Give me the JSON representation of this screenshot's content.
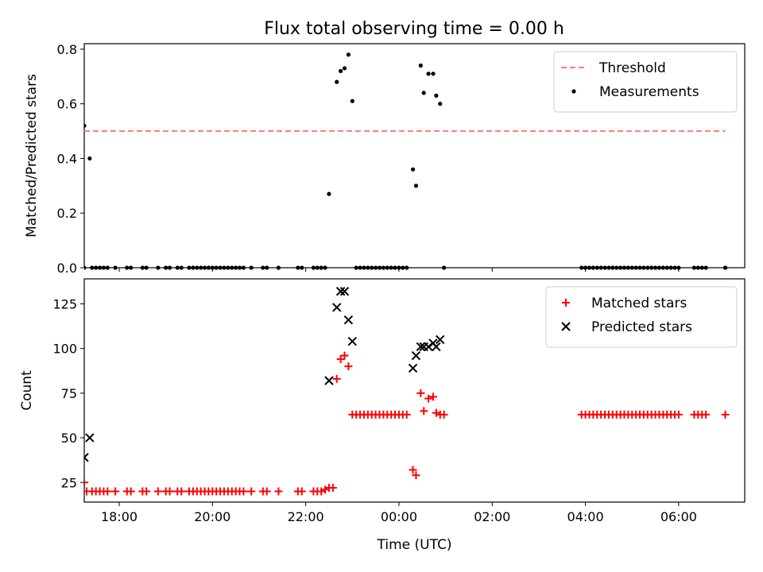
{
  "title": "Flux total observing time = 0.00 h",
  "chart_data": [
    {
      "type": "scatter",
      "ylabel": "Matched/Predicted stars",
      "xlabel": "",
      "xlim": [
        "17:15",
        "31:25"
      ],
      "ylim": [
        0,
        0.82
      ],
      "yticks": [
        "0.0",
        "0.2",
        "0.4",
        "0.6",
        "0.8"
      ],
      "ytick_values": [
        0,
        0.2,
        0.4,
        0.6,
        0.8
      ],
      "legend_position": "top-right",
      "threshold": {
        "name": "Threshold",
        "value": 0.5,
        "x_range": [
          "17:15",
          "31:00"
        ],
        "color": "#ff7f7f",
        "style": "dashed"
      },
      "series": [
        {
          "name": "Measurements",
          "marker": "dot",
          "color": "#000000",
          "points": [
            [
              "17:15",
              0.0
            ],
            [
              "17:15",
              0.52
            ],
            [
              "17:22",
              0.4
            ],
            [
              "17:25",
              0.0
            ],
            [
              "17:30",
              0.0
            ],
            [
              "17:35",
              0.0
            ],
            [
              "17:40",
              0.0
            ],
            [
              "17:45",
              0.0
            ],
            [
              "17:55",
              0.0
            ],
            [
              "18:10",
              0.0
            ],
            [
              "18:15",
              0.0
            ],
            [
              "18:30",
              0.0
            ],
            [
              "18:35",
              0.0
            ],
            [
              "18:50",
              0.0
            ],
            [
              "19:00",
              0.0
            ],
            [
              "19:05",
              0.0
            ],
            [
              "19:15",
              0.0
            ],
            [
              "19:20",
              0.0
            ],
            [
              "19:30",
              0.0
            ],
            [
              "19:35",
              0.0
            ],
            [
              "19:40",
              0.0
            ],
            [
              "19:45",
              0.0
            ],
            [
              "19:50",
              0.0
            ],
            [
              "19:55",
              0.0
            ],
            [
              "20:00",
              0.0
            ],
            [
              "20:05",
              0.0
            ],
            [
              "20:10",
              0.0
            ],
            [
              "20:15",
              0.0
            ],
            [
              "20:20",
              0.0
            ],
            [
              "20:25",
              0.0
            ],
            [
              "20:30",
              0.0
            ],
            [
              "20:35",
              0.0
            ],
            [
              "20:40",
              0.0
            ],
            [
              "20:50",
              0.0
            ],
            [
              "21:05",
              0.0
            ],
            [
              "21:10",
              0.0
            ],
            [
              "21:25",
              0.0
            ],
            [
              "21:50",
              0.0
            ],
            [
              "21:55",
              0.0
            ],
            [
              "22:10",
              0.0
            ],
            [
              "22:15",
              0.0
            ],
            [
              "22:20",
              0.0
            ],
            [
              "22:25",
              0.0
            ],
            [
              "22:30",
              0.27
            ],
            [
              "22:40",
              0.68
            ],
            [
              "22:45",
              0.72
            ],
            [
              "22:50",
              0.73
            ],
            [
              "22:55",
              0.78
            ],
            [
              "23:00",
              0.61
            ],
            [
              "23:05",
              0.0
            ],
            [
              "23:10",
              0.0
            ],
            [
              "23:15",
              0.0
            ],
            [
              "23:20",
              0.0
            ],
            [
              "23:25",
              0.0
            ],
            [
              "23:30",
              0.0
            ],
            [
              "23:35",
              0.0
            ],
            [
              "23:40",
              0.0
            ],
            [
              "23:45",
              0.0
            ],
            [
              "23:50",
              0.0
            ],
            [
              "23:55",
              0.0
            ],
            [
              "24:00",
              0.0
            ],
            [
              "24:05",
              0.0
            ],
            [
              "24:10",
              0.0
            ],
            [
              "24:18",
              0.36
            ],
            [
              "24:22",
              0.3
            ],
            [
              "24:28",
              0.74
            ],
            [
              "24:32",
              0.64
            ],
            [
              "24:38",
              0.71
            ],
            [
              "24:44",
              0.71
            ],
            [
              "24:48",
              0.63
            ],
            [
              "24:53",
              0.6
            ],
            [
              "24:58",
              0.0
            ],
            [
              "27:55",
              0.0
            ],
            [
              "28:00",
              0.0
            ],
            [
              "28:05",
              0.0
            ],
            [
              "28:10",
              0.0
            ],
            [
              "28:15",
              0.0
            ],
            [
              "28:20",
              0.0
            ],
            [
              "28:25",
              0.0
            ],
            [
              "28:30",
              0.0
            ],
            [
              "28:35",
              0.0
            ],
            [
              "28:40",
              0.0
            ],
            [
              "28:45",
              0.0
            ],
            [
              "28:50",
              0.0
            ],
            [
              "28:55",
              0.0
            ],
            [
              "29:00",
              0.0
            ],
            [
              "29:05",
              0.0
            ],
            [
              "29:10",
              0.0
            ],
            [
              "29:15",
              0.0
            ],
            [
              "29:20",
              0.0
            ],
            [
              "29:25",
              0.0
            ],
            [
              "29:30",
              0.0
            ],
            [
              "29:35",
              0.0
            ],
            [
              "29:40",
              0.0
            ],
            [
              "29:45",
              0.0
            ],
            [
              "29:50",
              0.0
            ],
            [
              "29:55",
              0.0
            ],
            [
              "30:00",
              0.0
            ],
            [
              "30:20",
              0.0
            ],
            [
              "30:25",
              0.0
            ],
            [
              "30:30",
              0.0
            ],
            [
              "30:35",
              0.0
            ],
            [
              "31:00",
              0.0
            ]
          ]
        }
      ]
    },
    {
      "type": "scatter",
      "ylabel": "Count",
      "xlabel": "Time (UTC)",
      "xlim": [
        "17:15",
        "31:25"
      ],
      "ylim": [
        14,
        139
      ],
      "xticks": [
        "18:00",
        "20:00",
        "22:00",
        "00:00",
        "02:00",
        "04:00",
        "06:00"
      ],
      "xtick_values": [
        "18:00",
        "20:00",
        "22:00",
        "24:00",
        "26:00",
        "28:00",
        "30:00"
      ],
      "yticks": [
        "25",
        "50",
        "75",
        "100",
        "125"
      ],
      "ytick_values": [
        25,
        50,
        75,
        100,
        125
      ],
      "legend_position": "top-right",
      "series": [
        {
          "name": "Matched stars",
          "marker": "plus",
          "color": "#ff0000",
          "points": [
            [
              "17:15",
              25
            ],
            [
              "17:18",
              20
            ],
            [
              "17:25",
              20
            ],
            [
              "17:30",
              20
            ],
            [
              "17:35",
              20
            ],
            [
              "17:40",
              20
            ],
            [
              "17:45",
              20
            ],
            [
              "17:55",
              20
            ],
            [
              "18:10",
              20
            ],
            [
              "18:15",
              20
            ],
            [
              "18:30",
              20
            ],
            [
              "18:35",
              20
            ],
            [
              "18:50",
              20
            ],
            [
              "19:00",
              20
            ],
            [
              "19:05",
              20
            ],
            [
              "19:15",
              20
            ],
            [
              "19:20",
              20
            ],
            [
              "19:30",
              20
            ],
            [
              "19:35",
              20
            ],
            [
              "19:40",
              20
            ],
            [
              "19:45",
              20
            ],
            [
              "19:50",
              20
            ],
            [
              "19:55",
              20
            ],
            [
              "20:00",
              20
            ],
            [
              "20:05",
              20
            ],
            [
              "20:10",
              20
            ],
            [
              "20:15",
              20
            ],
            [
              "20:20",
              20
            ],
            [
              "20:25",
              20
            ],
            [
              "20:30",
              20
            ],
            [
              "20:35",
              20
            ],
            [
              "20:40",
              20
            ],
            [
              "20:50",
              20
            ],
            [
              "21:05",
              20
            ],
            [
              "21:10",
              20
            ],
            [
              "21:25",
              20
            ],
            [
              "21:50",
              20
            ],
            [
              "21:55",
              20
            ],
            [
              "22:10",
              20
            ],
            [
              "22:15",
              20
            ],
            [
              "22:20",
              20
            ],
            [
              "22:25",
              21
            ],
            [
              "22:30",
              22
            ],
            [
              "22:35",
              22
            ],
            [
              "22:40",
              83
            ],
            [
              "22:45",
              94
            ],
            [
              "22:50",
              96
            ],
            [
              "22:55",
              90
            ],
            [
              "23:00",
              63
            ],
            [
              "23:05",
              63
            ],
            [
              "23:10",
              63
            ],
            [
              "23:15",
              63
            ],
            [
              "23:20",
              63
            ],
            [
              "23:25",
              63
            ],
            [
              "23:30",
              63
            ],
            [
              "23:35",
              63
            ],
            [
              "23:40",
              63
            ],
            [
              "23:45",
              63
            ],
            [
              "23:50",
              63
            ],
            [
              "23:55",
              63
            ],
            [
              "24:00",
              63
            ],
            [
              "24:05",
              63
            ],
            [
              "24:10",
              63
            ],
            [
              "24:18",
              32
            ],
            [
              "24:22",
              29
            ],
            [
              "24:28",
              75
            ],
            [
              "24:32",
              65
            ],
            [
              "24:38",
              72
            ],
            [
              "24:44",
              73
            ],
            [
              "24:48",
              64
            ],
            [
              "24:53",
              63
            ],
            [
              "24:58",
              63
            ],
            [
              "27:55",
              63
            ],
            [
              "28:00",
              63
            ],
            [
              "28:05",
              63
            ],
            [
              "28:10",
              63
            ],
            [
              "28:15",
              63
            ],
            [
              "28:20",
              63
            ],
            [
              "28:25",
              63
            ],
            [
              "28:30",
              63
            ],
            [
              "28:35",
              63
            ],
            [
              "28:40",
              63
            ],
            [
              "28:45",
              63
            ],
            [
              "28:50",
              63
            ],
            [
              "28:55",
              63
            ],
            [
              "29:00",
              63
            ],
            [
              "29:05",
              63
            ],
            [
              "29:10",
              63
            ],
            [
              "29:15",
              63
            ],
            [
              "29:20",
              63
            ],
            [
              "29:25",
              63
            ],
            [
              "29:30",
              63
            ],
            [
              "29:35",
              63
            ],
            [
              "29:40",
              63
            ],
            [
              "29:45",
              63
            ],
            [
              "29:50",
              63
            ],
            [
              "29:55",
              63
            ],
            [
              "30:00",
              63
            ],
            [
              "30:20",
              63
            ],
            [
              "30:25",
              63
            ],
            [
              "30:30",
              63
            ],
            [
              "30:35",
              63
            ],
            [
              "31:00",
              63
            ]
          ]
        },
        {
          "name": "Predicted stars",
          "marker": "x",
          "color": "#000000",
          "points": [
            [
              "17:15",
              39
            ],
            [
              "17:22",
              50
            ],
            [
              "22:30",
              82
            ],
            [
              "22:40",
              123
            ],
            [
              "22:45",
              132
            ],
            [
              "22:50",
              132
            ],
            [
              "22:55",
              116
            ],
            [
              "23:00",
              104
            ],
            [
              "24:18",
              89
            ],
            [
              "24:22",
              96
            ],
            [
              "24:28",
              101
            ],
            [
              "24:32",
              101
            ],
            [
              "24:38",
              101
            ],
            [
              "24:44",
              103
            ],
            [
              "24:48",
              101
            ],
            [
              "24:53",
              105
            ]
          ]
        }
      ]
    }
  ]
}
